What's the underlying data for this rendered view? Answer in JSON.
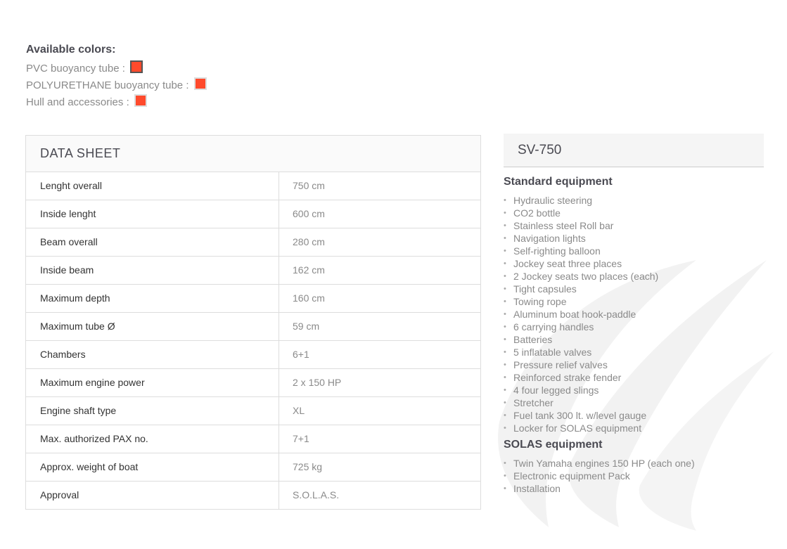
{
  "colors": {
    "title": "Available colors:",
    "items": [
      {
        "label": "PVC buoyancy tube :",
        "color": "#ff4a2c",
        "selected": true
      },
      {
        "label": "POLYURETHANE buoyancy tube :",
        "color": "#ff4a2c",
        "selected": false
      },
      {
        "label": "Hull and accessories :",
        "color": "#ff4a2c",
        "selected": false
      }
    ]
  },
  "datasheet": {
    "title": "DATA SHEET",
    "rows": [
      {
        "k": "Lenght overall",
        "v": "750 cm"
      },
      {
        "k": "Inside lenght",
        "v": "600 cm"
      },
      {
        "k": "Beam overall",
        "v": "280 cm"
      },
      {
        "k": "Inside beam",
        "v": "162 cm"
      },
      {
        "k": "Maximum depth",
        "v": "160 cm"
      },
      {
        "k": "Maximum tube Ø",
        "v": "59 cm"
      },
      {
        "k": "Chambers",
        "v": "6+1"
      },
      {
        "k": "Maximum engine power",
        "v": "2 x 150 HP"
      },
      {
        "k": "Engine shaft type",
        "v": "XL"
      },
      {
        "k": "Max. authorized PAX no.",
        "v": "7+1"
      },
      {
        "k": "Approx. weight of boat",
        "v": "725 kg"
      },
      {
        "k": "Approval",
        "v": "S.O.L.A.S."
      }
    ]
  },
  "side": {
    "model": "SV-750",
    "standard_title": "Standard equipment",
    "standard": [
      "Hydraulic steering",
      "CO2 bottle",
      "Stainless steel Roll bar",
      "Navigation lights",
      "Self-righting balloon",
      "Jockey seat three places",
      "2 Jockey seats two places (each)",
      "Tight capsules",
      "Towing rope",
      "Aluminum boat hook-paddle",
      "6 carrying handles",
      "Batteries",
      "5 inflatable valves",
      "Pressure relief valves",
      "Reinforced strake fender",
      "4 four legged slings",
      "Stretcher",
      "Fuel tank 300 lt. w/level gauge",
      "Locker for SOLAS equipment"
    ],
    "solas_title": "SOLAS equipment",
    "solas": [
      "Twin Yamaha engines 150 HP (each one)",
      "Electronic equipment Pack",
      "Installation"
    ]
  }
}
